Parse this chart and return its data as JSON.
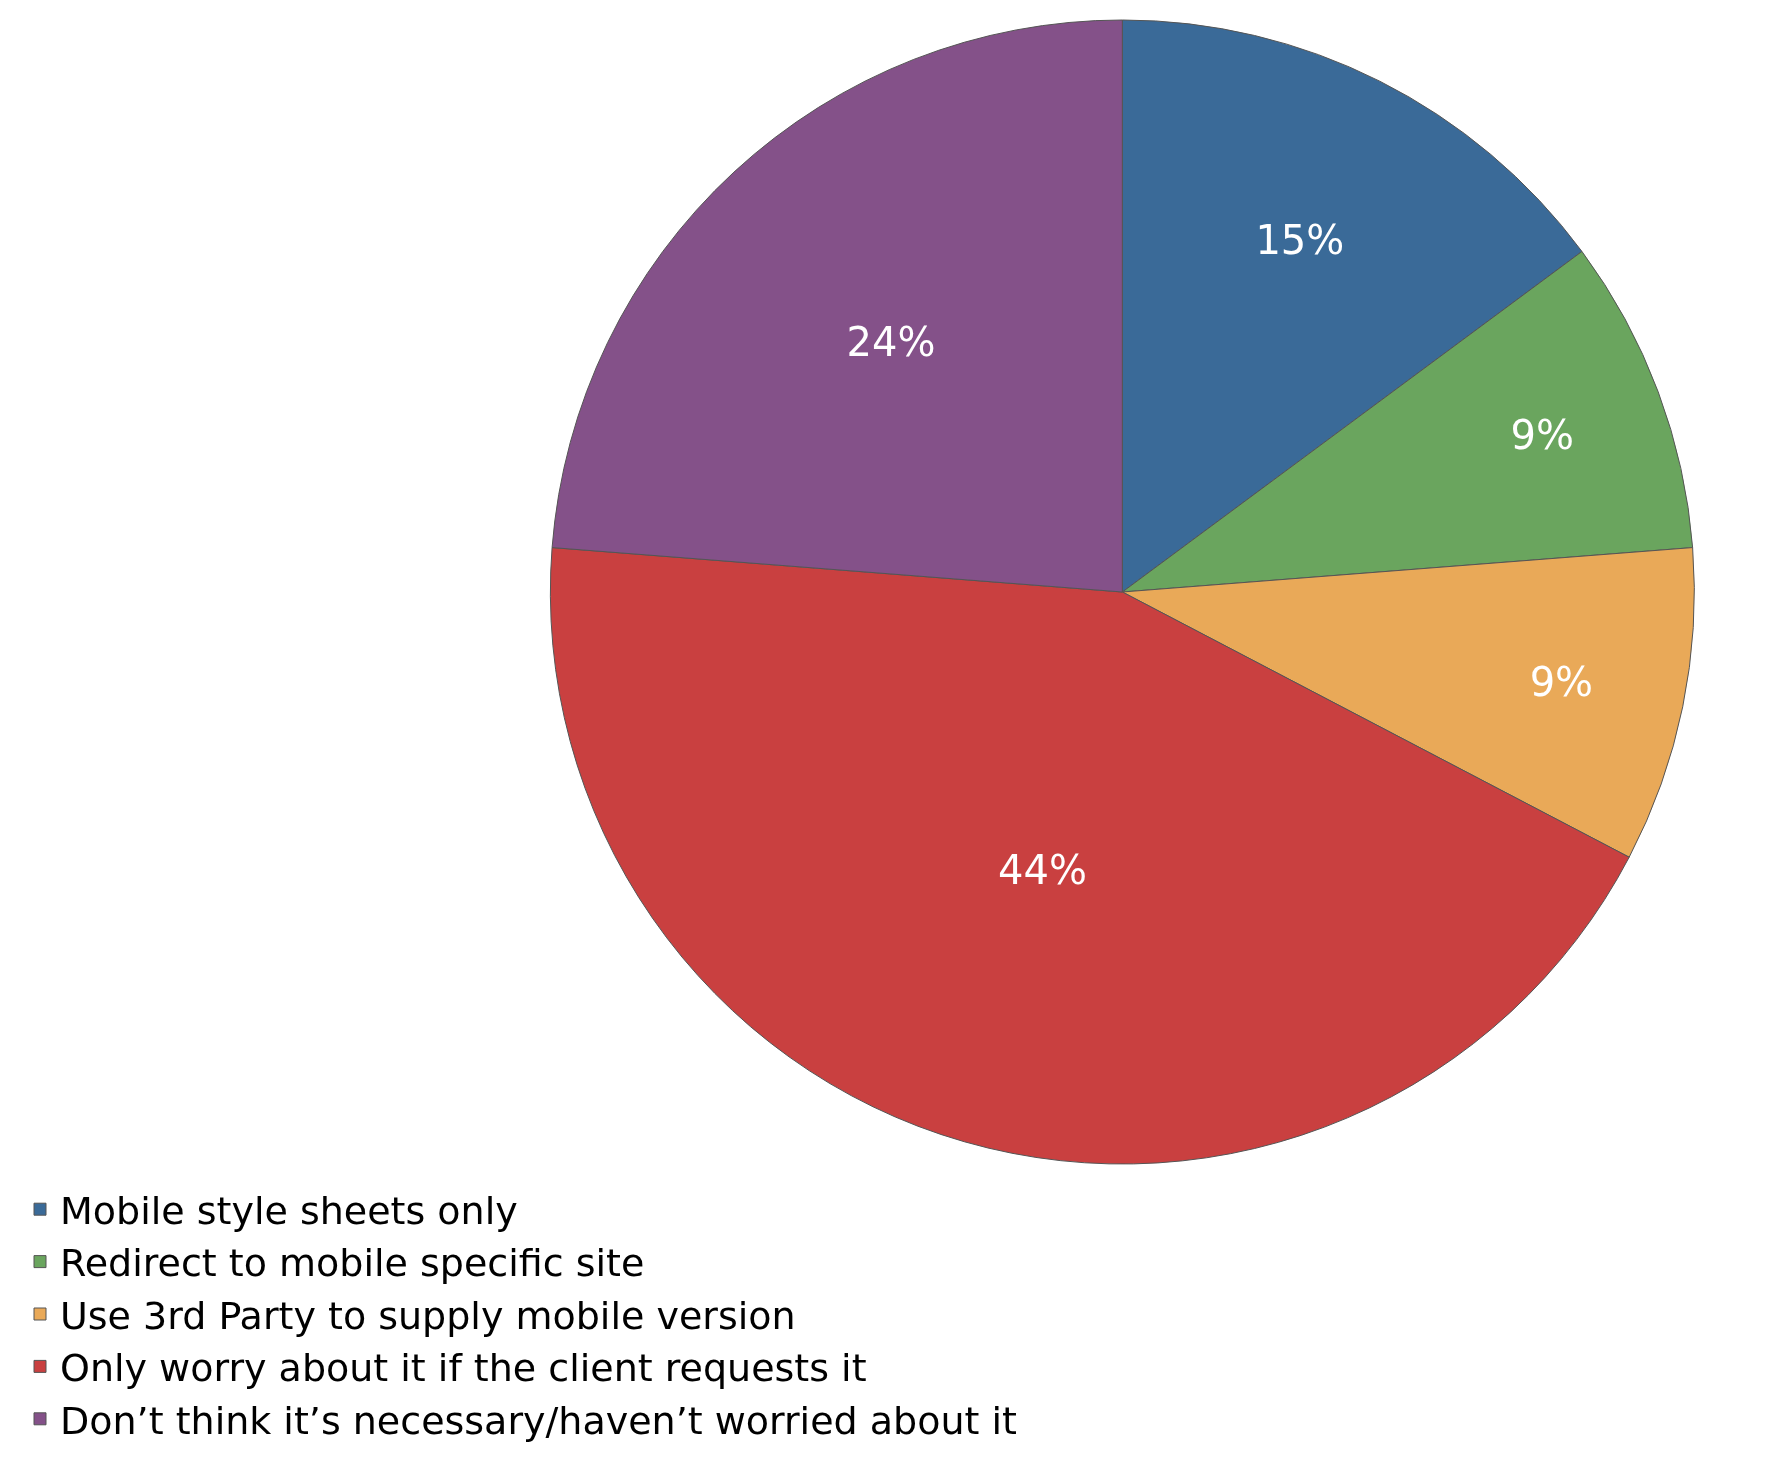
{
  "chart_data": {
    "type": "pie",
    "categories": [
      "Mobile style sheets only",
      "Redirect to mobile specific site",
      "Use 3rd Party to supply mobile version",
      "Only worry about it if the client requests it",
      "Don’t think it’s necessary/haven’t worried about it"
    ],
    "values": [
      15,
      9,
      9,
      44,
      24
    ],
    "colors": [
      "#3a6a98",
      "#6aa55e",
      "#e9a958",
      "#c94040",
      "#845189"
    ],
    "value_labels": [
      "15%",
      "9%",
      "9%",
      "44%",
      "24%"
    ],
    "legend": "bottom left"
  }
}
